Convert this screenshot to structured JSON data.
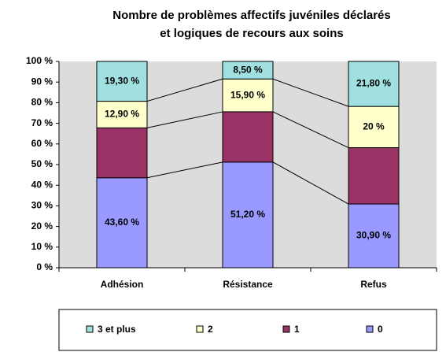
{
  "chart_data": {
    "type": "stacked_bar_100",
    "title": [
      "Nombre de problèmes affectifs juvéniles déclarés",
      "et logiques de recours aux soins"
    ],
    "categories": [
      "Adhésion",
      "Résistance",
      "Refus"
    ],
    "series": [
      {
        "name": "0",
        "color": "#9999ff",
        "values": [
          43.6,
          51.2,
          30.9
        ],
        "value_labels": [
          "43,60 %",
          "51,20 %",
          "30,90 %"
        ]
      },
      {
        "name": "1",
        "color": "#993366",
        "values": [
          24.2,
          24.4,
          27.3
        ]
      },
      {
        "name": "2",
        "color": "#ffffcc",
        "values": [
          12.9,
          15.9,
          20
        ],
        "value_labels": [
          "12,90 %",
          "15,90 %",
          "20 %"
        ]
      },
      {
        "name": "3 et plus",
        "color": "#a0e0e0",
        "values": [
          19.3,
          8.5,
          21.8
        ],
        "value_labels": [
          "19,30 %",
          "8,50 %",
          "21,80 %"
        ]
      }
    ],
    "ylim": [
      0,
      100
    ],
    "yticks": [
      {
        "value": 0,
        "label": "0 %"
      },
      {
        "value": 10,
        "label": "10 %"
      },
      {
        "value": 20,
        "label": "20 %"
      },
      {
        "value": 30,
        "label": "30 %"
      },
      {
        "value": 40,
        "label": "40 %"
      },
      {
        "value": 50,
        "label": "50 %"
      },
      {
        "value": 60,
        "label": "60 %"
      },
      {
        "value": 70,
        "label": "70 %"
      },
      {
        "value": 80,
        "label": "80 %"
      },
      {
        "value": 90,
        "label": "90 %"
      },
      {
        "value": 100,
        "label": "100 %"
      }
    ],
    "legend": "bottom"
  }
}
